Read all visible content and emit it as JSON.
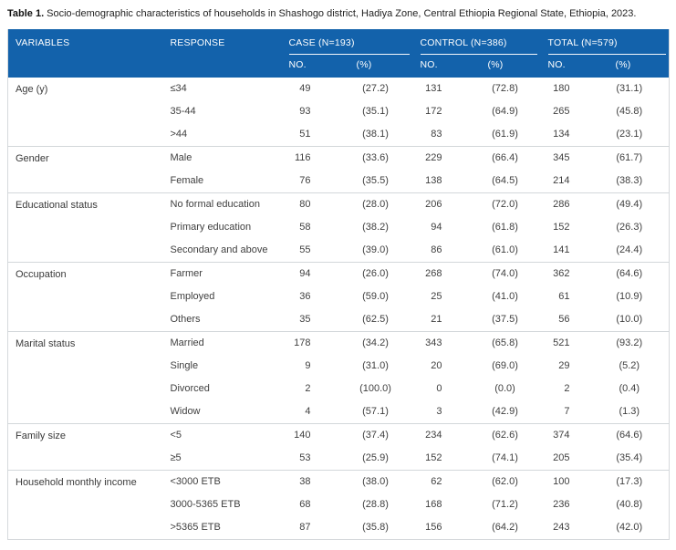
{
  "caption": {
    "label": "Table 1.",
    "text": "Socio-demographic characteristics of households in Shashogo district, Hadiya Zone, Central Ethiopia Regional State, Ethiopia, 2023."
  },
  "colors": {
    "header_bg": "#1362ab",
    "header_text": "#ffffff",
    "body_text": "#3f3f3f",
    "divider": "#d3d7da"
  },
  "header": {
    "variables": "VARIABLES",
    "response": "RESPONSE",
    "groups": [
      {
        "label": "CASE (N=193)",
        "sub": [
          "NO.",
          "(%)"
        ]
      },
      {
        "label": "CONTROL (N=386)",
        "sub": [
          "NO.",
          "(%)"
        ]
      },
      {
        "label": "TOTAL (N=579)",
        "sub": [
          "NO.",
          "(%)"
        ]
      }
    ]
  },
  "sections": [
    {
      "variable": "Age (y)",
      "rows": [
        {
          "response": "≤34",
          "values": [
            "49",
            "(27.2)",
            "131",
            "(72.8)",
            "180",
            "(31.1)"
          ]
        },
        {
          "response": "35-44",
          "values": [
            "93",
            "(35.1)",
            "172",
            "(64.9)",
            "265",
            "(45.8)"
          ]
        },
        {
          "response": ">44",
          "values": [
            "51",
            "(38.1)",
            "83",
            "(61.9)",
            "134",
            "(23.1)"
          ]
        }
      ]
    },
    {
      "variable": "Gender",
      "rows": [
        {
          "response": "Male",
          "values": [
            "116",
            "(33.6)",
            "229",
            "(66.4)",
            "345",
            "(61.7)"
          ]
        },
        {
          "response": "Female",
          "values": [
            "76",
            "(35.5)",
            "138",
            "(64.5)",
            "214",
            "(38.3)"
          ]
        }
      ]
    },
    {
      "variable": "Educational status",
      "rows": [
        {
          "response": "No formal education",
          "values": [
            "80",
            "(28.0)",
            "206",
            "(72.0)",
            "286",
            "(49.4)"
          ]
        },
        {
          "response": "Primary education",
          "values": [
            "58",
            "(38.2)",
            "94",
            "(61.8)",
            "152",
            "(26.3)"
          ]
        },
        {
          "response": "Secondary and above",
          "values": [
            "55",
            "(39.0)",
            "86",
            "(61.0)",
            "141",
            "(24.4)"
          ]
        }
      ]
    },
    {
      "variable": "Occupation",
      "rows": [
        {
          "response": "Farmer",
          "values": [
            "94",
            "(26.0)",
            "268",
            "(74.0)",
            "362",
            "(64.6)"
          ]
        },
        {
          "response": "Employed",
          "values": [
            "36",
            "(59.0)",
            "25",
            "(41.0)",
            "61",
            "(10.9)"
          ]
        },
        {
          "response": "Others",
          "values": [
            "35",
            "(62.5)",
            "21",
            "(37.5)",
            "56",
            "(10.0)"
          ]
        }
      ]
    },
    {
      "variable": "Marital status",
      "rows": [
        {
          "response": "Married",
          "values": [
            "178",
            "(34.2)",
            "343",
            "(65.8)",
            "521",
            "(93.2)"
          ]
        },
        {
          "response": "Single",
          "values": [
            "9",
            "(31.0)",
            "20",
            "(69.0)",
            "29",
            "(5.2)"
          ]
        },
        {
          "response": "Divorced",
          "values": [
            "2",
            "(100.0)",
            "0",
            "(0.0)",
            "2",
            "(0.4)"
          ]
        },
        {
          "response": "Widow",
          "values": [
            "4",
            "(57.1)",
            "3",
            "(42.9)",
            "7",
            "(1.3)"
          ]
        }
      ]
    },
    {
      "variable": "Family size",
      "rows": [
        {
          "response": "<5",
          "values": [
            "140",
            "(37.4)",
            "234",
            "(62.6)",
            "374",
            "(64.6)"
          ]
        },
        {
          "response": "≥5",
          "values": [
            "53",
            "(25.9)",
            "152",
            "(74.1)",
            "205",
            "(35.4)"
          ]
        }
      ]
    },
    {
      "variable": "Household monthly income",
      "rows": [
        {
          "response": "<3000 ETB",
          "values": [
            "38",
            "(38.0)",
            "62",
            "(62.0)",
            "100",
            "(17.3)"
          ]
        },
        {
          "response": "3000-5365 ETB",
          "values": [
            "68",
            "(28.8)",
            "168",
            "(71.2)",
            "236",
            "(40.8)"
          ]
        },
        {
          "response": ">5365 ETB",
          "values": [
            "87",
            "(35.8)",
            "156",
            "(64.2)",
            "243",
            "(42.0)"
          ]
        }
      ]
    }
  ]
}
